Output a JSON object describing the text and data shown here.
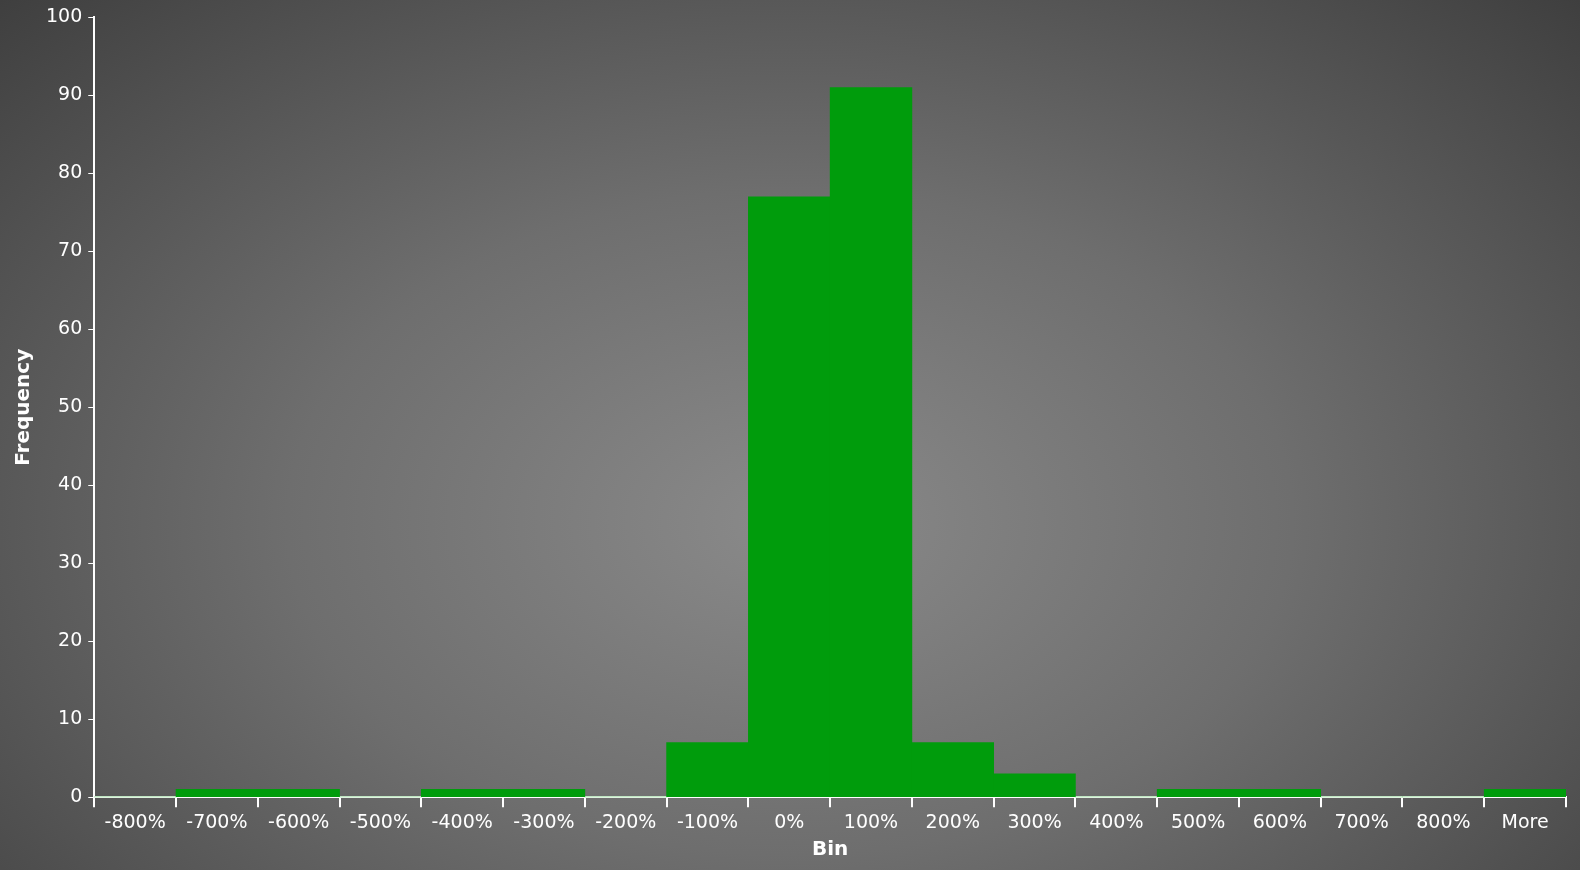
{
  "chart_data": {
    "type": "bar",
    "xlabel": "Bin",
    "ylabel": "Frequency",
    "categories": [
      "-800%",
      "-700%",
      "-600%",
      "-500%",
      "-400%",
      "-300%",
      "-200%",
      "-100%",
      "0%",
      "100%",
      "200%",
      "300%",
      "400%",
      "500%",
      "600%",
      "700%",
      "800%",
      "More"
    ],
    "values": [
      0,
      1,
      1,
      0,
      1,
      1,
      0,
      7,
      77,
      91,
      7,
      3,
      0,
      1,
      1,
      0,
      0,
      1
    ],
    "color": "#009c0c",
    "ylim": [
      0,
      100
    ],
    "yticks": [
      0,
      10,
      20,
      30,
      40,
      50,
      60,
      70,
      80,
      90,
      100
    ],
    "grid": false,
    "legend": false
  }
}
